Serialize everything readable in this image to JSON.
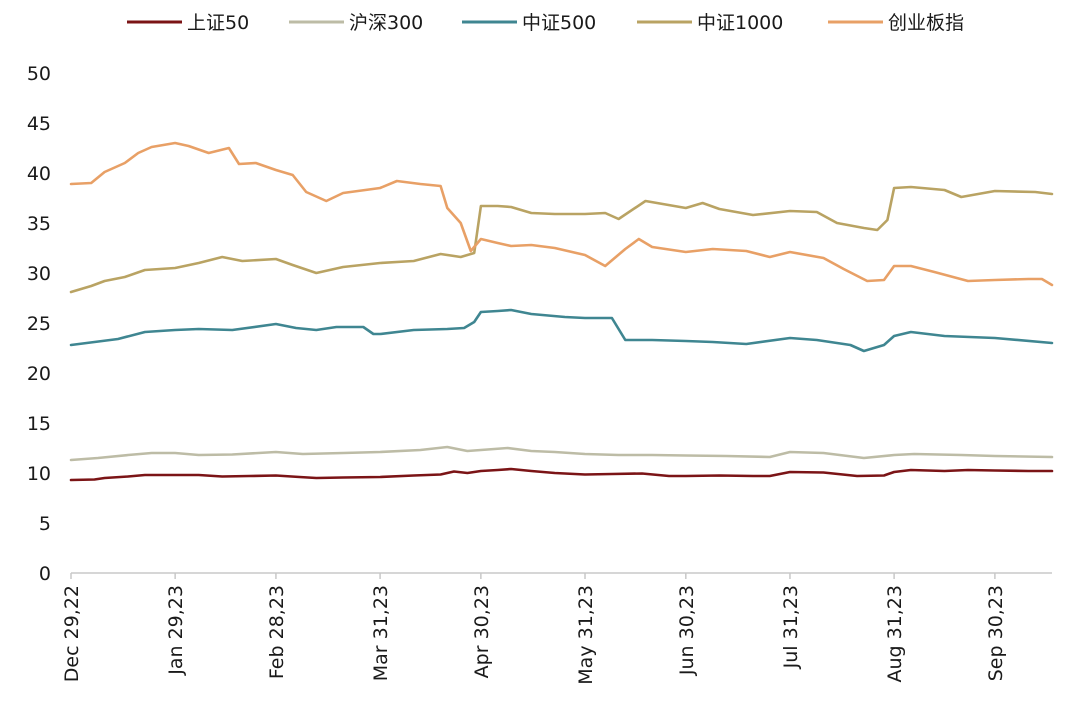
{
  "chart_data": {
    "type": "line",
    "title": "",
    "xlabel": "",
    "ylabel": "",
    "ylim": [
      0,
      50
    ],
    "yticks": [
      0,
      5,
      10,
      15,
      20,
      25,
      30,
      35,
      40,
      45,
      50
    ],
    "x_ticks": [
      "Dec 29,22",
      "Jan 29,23",
      "Feb 28,23",
      "Mar 31,23",
      "Apr 30,23",
      "May 31,23",
      "Jun 30,23",
      "Jul 31,23",
      "Aug 31,23",
      "Sep 30,23"
    ],
    "x_tick_dates": [
      "2022-12-29",
      "2023-01-29",
      "2023-02-28",
      "2023-03-31",
      "2023-04-30",
      "2023-05-31",
      "2023-06-30",
      "2023-07-31",
      "2023-08-31",
      "2023-09-30"
    ],
    "x_range": [
      "2022-12-29",
      "2023-10-17"
    ],
    "grid": false,
    "legend_position": "top",
    "series": [
      {
        "name": "上证50",
        "color": "#7B1416",
        "points": [
          [
            "2022-12-29",
            9.3
          ],
          [
            "2023-01-05",
            9.35
          ],
          [
            "2023-01-08",
            9.5
          ],
          [
            "2023-01-15",
            9.65
          ],
          [
            "2023-01-20",
            9.8
          ],
          [
            "2023-01-29",
            9.8
          ],
          [
            "2023-02-05",
            9.8
          ],
          [
            "2023-02-12",
            9.65
          ],
          [
            "2023-02-20",
            9.7
          ],
          [
            "2023-02-28",
            9.75
          ],
          [
            "2023-03-07",
            9.6
          ],
          [
            "2023-03-12",
            9.5
          ],
          [
            "2023-03-20",
            9.55
          ],
          [
            "2023-03-31",
            9.6
          ],
          [
            "2023-04-10",
            9.75
          ],
          [
            "2023-04-18",
            9.85
          ],
          [
            "2023-04-22",
            10.15
          ],
          [
            "2023-04-26",
            10.0
          ],
          [
            "2023-04-30",
            10.2
          ],
          [
            "2023-05-05",
            10.3
          ],
          [
            "2023-05-09",
            10.4
          ],
          [
            "2023-05-15",
            10.2
          ],
          [
            "2023-05-22",
            10.0
          ],
          [
            "2023-05-31",
            9.85
          ],
          [
            "2023-06-08",
            9.9
          ],
          [
            "2023-06-17",
            9.95
          ],
          [
            "2023-06-25",
            9.7
          ],
          [
            "2023-06-30",
            9.7
          ],
          [
            "2023-07-10",
            9.75
          ],
          [
            "2023-07-20",
            9.7
          ],
          [
            "2023-07-25",
            9.7
          ],
          [
            "2023-07-31",
            10.1
          ],
          [
            "2023-08-10",
            10.05
          ],
          [
            "2023-08-20",
            9.7
          ],
          [
            "2023-08-28",
            9.75
          ],
          [
            "2023-08-31",
            10.1
          ],
          [
            "2023-09-05",
            10.3
          ],
          [
            "2023-09-15",
            10.2
          ],
          [
            "2023-09-22",
            10.3
          ],
          [
            "2023-09-30",
            10.25
          ],
          [
            "2023-10-10",
            10.2
          ],
          [
            "2023-10-17",
            10.2
          ]
        ]
      },
      {
        "name": "沪深300",
        "color": "#BDBCA6",
        "points": [
          [
            "2022-12-29",
            11.3
          ],
          [
            "2023-01-06",
            11.5
          ],
          [
            "2023-01-15",
            11.8
          ],
          [
            "2023-01-22",
            12.0
          ],
          [
            "2023-01-29",
            12.0
          ],
          [
            "2023-02-05",
            11.8
          ],
          [
            "2023-02-15",
            11.85
          ],
          [
            "2023-02-28",
            12.1
          ],
          [
            "2023-03-08",
            11.9
          ],
          [
            "2023-03-20",
            12.0
          ],
          [
            "2023-03-31",
            12.1
          ],
          [
            "2023-04-12",
            12.3
          ],
          [
            "2023-04-20",
            12.6
          ],
          [
            "2023-04-26",
            12.2
          ],
          [
            "2023-04-30",
            12.3
          ],
          [
            "2023-05-08",
            12.5
          ],
          [
            "2023-05-15",
            12.2
          ],
          [
            "2023-05-22",
            12.1
          ],
          [
            "2023-05-31",
            11.9
          ],
          [
            "2023-06-10",
            11.8
          ],
          [
            "2023-06-20",
            11.8
          ],
          [
            "2023-06-30",
            11.75
          ],
          [
            "2023-07-12",
            11.7
          ],
          [
            "2023-07-25",
            11.6
          ],
          [
            "2023-07-31",
            12.1
          ],
          [
            "2023-08-10",
            12.0
          ],
          [
            "2023-08-22",
            11.5
          ],
          [
            "2023-08-31",
            11.8
          ],
          [
            "2023-09-06",
            11.9
          ],
          [
            "2023-09-20",
            11.8
          ],
          [
            "2023-09-30",
            11.7
          ],
          [
            "2023-10-17",
            11.6
          ]
        ]
      },
      {
        "name": "中证500",
        "color": "#3F8691",
        "points": [
          [
            "2022-12-29",
            22.8
          ],
          [
            "2023-01-05",
            23.1
          ],
          [
            "2023-01-12",
            23.4
          ],
          [
            "2023-01-20",
            24.1
          ],
          [
            "2023-01-29",
            24.3
          ],
          [
            "2023-02-05",
            24.4
          ],
          [
            "2023-02-15",
            24.3
          ],
          [
            "2023-02-28",
            24.9
          ],
          [
            "2023-03-06",
            24.5
          ],
          [
            "2023-03-12",
            24.3
          ],
          [
            "2023-03-18",
            24.6
          ],
          [
            "2023-03-26",
            24.6
          ],
          [
            "2023-03-29",
            23.9
          ],
          [
            "2023-03-31",
            23.9
          ],
          [
            "2023-04-10",
            24.3
          ],
          [
            "2023-04-20",
            24.4
          ],
          [
            "2023-04-25",
            24.5
          ],
          [
            "2023-04-28",
            25.1
          ],
          [
            "2023-04-30",
            26.1
          ],
          [
            "2023-05-05",
            26.2
          ],
          [
            "2023-05-09",
            26.3
          ],
          [
            "2023-05-15",
            25.9
          ],
          [
            "2023-05-25",
            25.6
          ],
          [
            "2023-05-31",
            25.5
          ],
          [
            "2023-06-08",
            25.5
          ],
          [
            "2023-06-12",
            23.3
          ],
          [
            "2023-06-20",
            23.3
          ],
          [
            "2023-06-30",
            23.2
          ],
          [
            "2023-07-08",
            23.1
          ],
          [
            "2023-07-18",
            22.9
          ],
          [
            "2023-07-31",
            23.5
          ],
          [
            "2023-08-08",
            23.3
          ],
          [
            "2023-08-18",
            22.8
          ],
          [
            "2023-08-22",
            22.2
          ],
          [
            "2023-08-28",
            22.8
          ],
          [
            "2023-08-31",
            23.7
          ],
          [
            "2023-09-05",
            24.1
          ],
          [
            "2023-09-15",
            23.7
          ],
          [
            "2023-09-30",
            23.5
          ],
          [
            "2023-10-17",
            23.0
          ]
        ]
      },
      {
        "name": "中证1000",
        "color": "#B9A363",
        "points": [
          [
            "2022-12-29",
            28.1
          ],
          [
            "2023-01-04",
            28.7
          ],
          [
            "2023-01-08",
            29.2
          ],
          [
            "2023-01-14",
            29.6
          ],
          [
            "2023-01-20",
            30.3
          ],
          [
            "2023-01-29",
            30.5
          ],
          [
            "2023-02-05",
            31.0
          ],
          [
            "2023-02-12",
            31.6
          ],
          [
            "2023-02-18",
            31.2
          ],
          [
            "2023-02-28",
            31.4
          ],
          [
            "2023-03-05",
            30.8
          ],
          [
            "2023-03-12",
            30.0
          ],
          [
            "2023-03-20",
            30.6
          ],
          [
            "2023-03-31",
            31.0
          ],
          [
            "2023-04-10",
            31.2
          ],
          [
            "2023-04-18",
            31.9
          ],
          [
            "2023-04-24",
            31.6
          ],
          [
            "2023-04-28",
            32.0
          ],
          [
            "2023-04-30",
            36.7
          ],
          [
            "2023-05-05",
            36.7
          ],
          [
            "2023-05-09",
            36.6
          ],
          [
            "2023-05-15",
            36.0
          ],
          [
            "2023-05-22",
            35.9
          ],
          [
            "2023-05-31",
            35.9
          ],
          [
            "2023-06-06",
            36.0
          ],
          [
            "2023-06-10",
            35.4
          ],
          [
            "2023-06-18",
            37.2
          ],
          [
            "2023-06-30",
            36.5
          ],
          [
            "2023-07-05",
            37.0
          ],
          [
            "2023-07-10",
            36.4
          ],
          [
            "2023-07-20",
            35.8
          ],
          [
            "2023-07-31",
            36.2
          ],
          [
            "2023-08-08",
            36.1
          ],
          [
            "2023-08-14",
            35.0
          ],
          [
            "2023-08-22",
            34.5
          ],
          [
            "2023-08-26",
            34.3
          ],
          [
            "2023-08-29",
            35.3
          ],
          [
            "2023-08-31",
            38.5
          ],
          [
            "2023-09-05",
            38.6
          ],
          [
            "2023-09-15",
            38.3
          ],
          [
            "2023-09-20",
            37.6
          ],
          [
            "2023-09-30",
            38.2
          ],
          [
            "2023-10-12",
            38.1
          ],
          [
            "2023-10-17",
            37.9
          ]
        ]
      },
      {
        "name": "创业板指",
        "color": "#E8A066",
        "points": [
          [
            "2022-12-29",
            38.9
          ],
          [
            "2023-01-04",
            39.0
          ],
          [
            "2023-01-08",
            40.1
          ],
          [
            "2023-01-14",
            41.0
          ],
          [
            "2023-01-18",
            42.0
          ],
          [
            "2023-01-22",
            42.6
          ],
          [
            "2023-01-29",
            43.0
          ],
          [
            "2023-02-02",
            42.7
          ],
          [
            "2023-02-08",
            42.0
          ],
          [
            "2023-02-14",
            42.5
          ],
          [
            "2023-02-17",
            40.9
          ],
          [
            "2023-02-22",
            41.0
          ],
          [
            "2023-02-28",
            40.3
          ],
          [
            "2023-03-05",
            39.8
          ],
          [
            "2023-03-09",
            38.1
          ],
          [
            "2023-03-15",
            37.2
          ],
          [
            "2023-03-20",
            38.0
          ],
          [
            "2023-03-31",
            38.5
          ],
          [
            "2023-04-05",
            39.2
          ],
          [
            "2023-04-12",
            38.9
          ],
          [
            "2023-04-18",
            38.7
          ],
          [
            "2023-04-20",
            36.5
          ],
          [
            "2023-04-24",
            35.0
          ],
          [
            "2023-04-27",
            32.2
          ],
          [
            "2023-04-30",
            33.4
          ],
          [
            "2023-05-05",
            33.0
          ],
          [
            "2023-05-09",
            32.7
          ],
          [
            "2023-05-15",
            32.8
          ],
          [
            "2023-05-22",
            32.5
          ],
          [
            "2023-05-31",
            31.8
          ],
          [
            "2023-06-06",
            30.7
          ],
          [
            "2023-06-12",
            32.4
          ],
          [
            "2023-06-16",
            33.4
          ],
          [
            "2023-06-20",
            32.6
          ],
          [
            "2023-06-30",
            32.1
          ],
          [
            "2023-07-08",
            32.4
          ],
          [
            "2023-07-18",
            32.2
          ],
          [
            "2023-07-25",
            31.6
          ],
          [
            "2023-07-31",
            32.1
          ],
          [
            "2023-08-10",
            31.5
          ],
          [
            "2023-08-16",
            30.4
          ],
          [
            "2023-08-23",
            29.2
          ],
          [
            "2023-08-28",
            29.3
          ],
          [
            "2023-08-31",
            30.7
          ],
          [
            "2023-09-05",
            30.7
          ],
          [
            "2023-09-12",
            30.1
          ],
          [
            "2023-09-22",
            29.2
          ],
          [
            "2023-09-30",
            29.3
          ],
          [
            "2023-10-10",
            29.4
          ],
          [
            "2023-10-14",
            29.4
          ],
          [
            "2023-10-17",
            28.8
          ]
        ]
      }
    ]
  }
}
